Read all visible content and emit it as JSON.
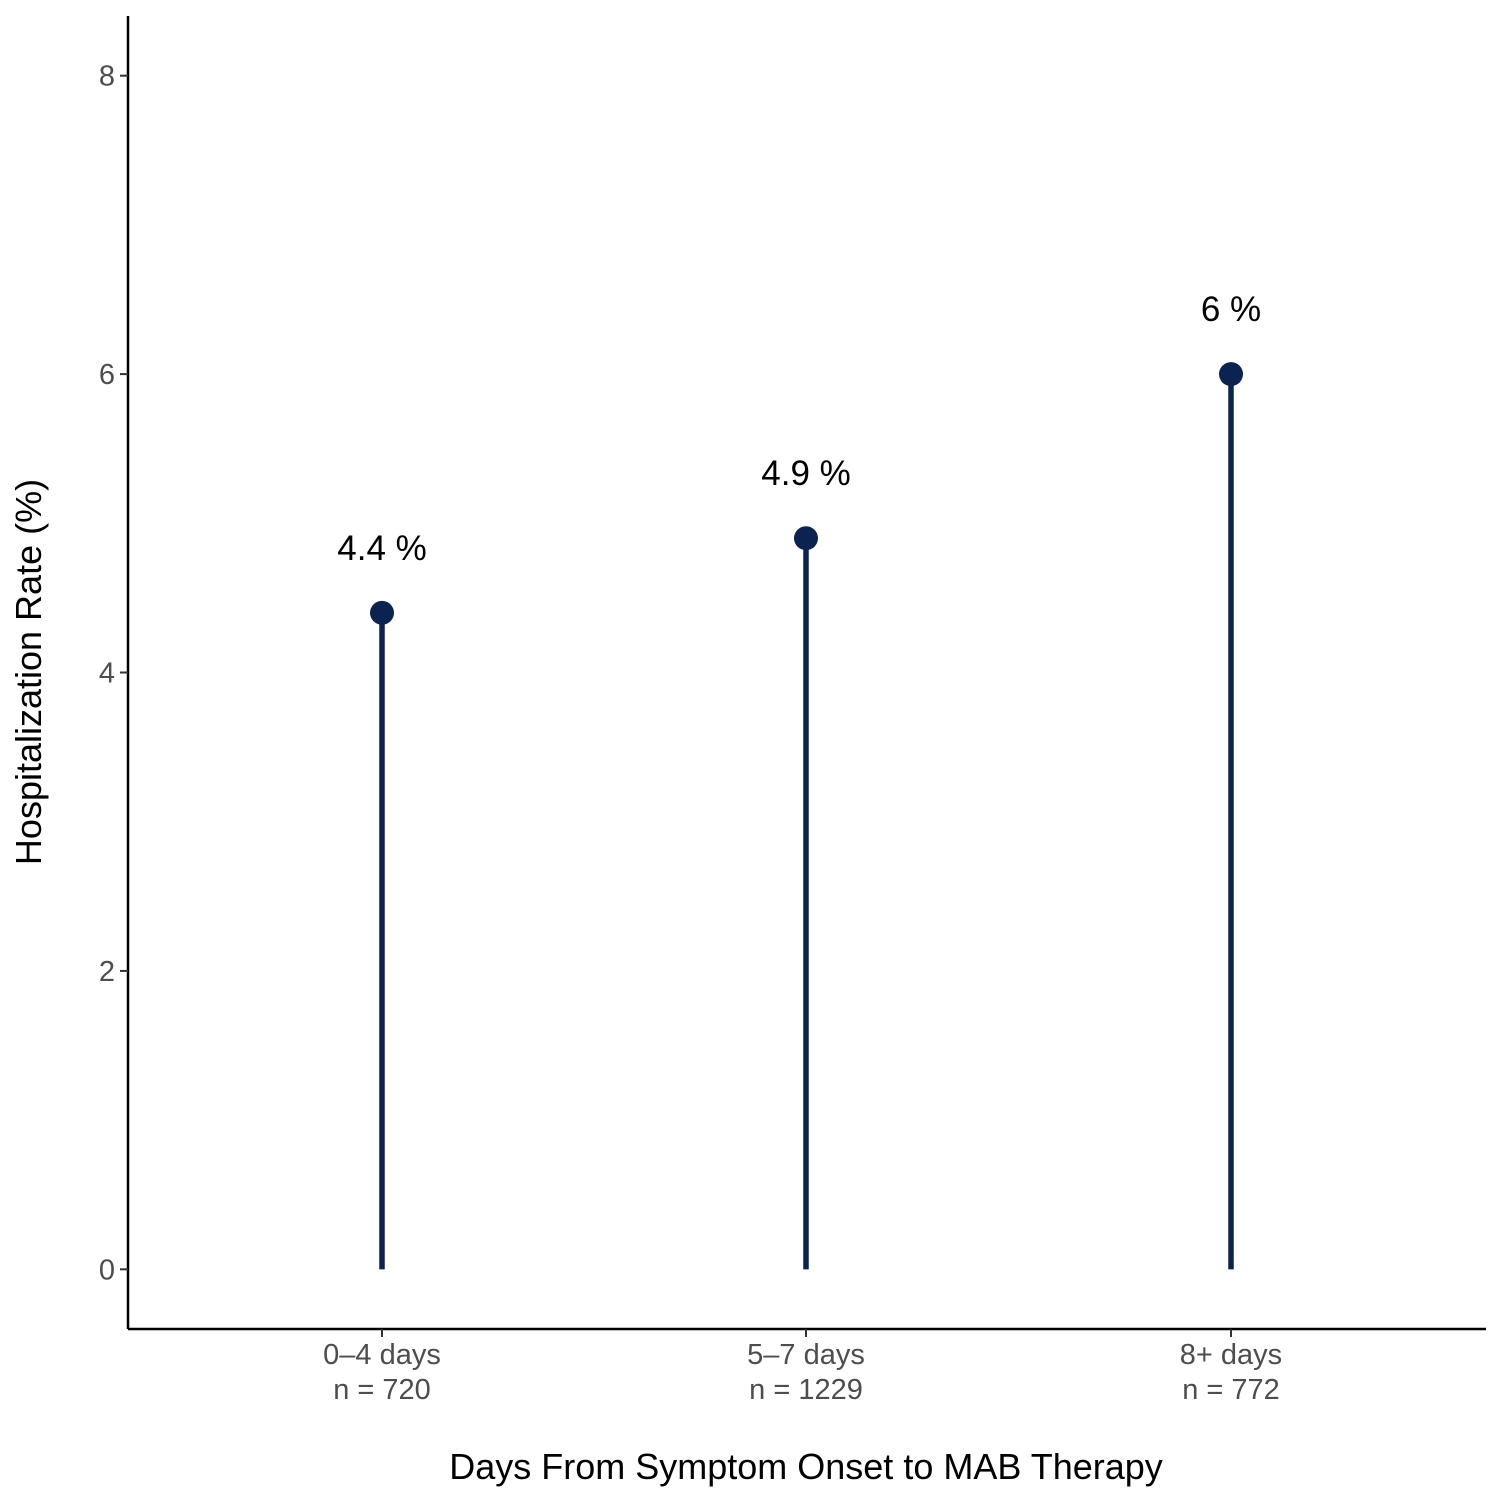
{
  "chart_data": {
    "type": "lollipop",
    "title": "",
    "xlabel": "Days From Symptom Onset to MAB Therapy",
    "ylabel": "Hospitalization Rate (%)",
    "categories": [
      {
        "label": "0–4 days",
        "sublabel": "n = 720"
      },
      {
        "label": "5–7 days",
        "sublabel": "n = 1229"
      },
      {
        "label": "8+ days",
        "sublabel": "n = 772"
      }
    ],
    "values": [
      4.4,
      4.9,
      6.0
    ],
    "data_labels": [
      "4.4 %",
      "4.9 %",
      "6 %"
    ],
    "y_ticks": [
      {
        "value": 0,
        "label": "0"
      },
      {
        "value": 2,
        "label": "2"
      },
      {
        "value": 4,
        "label": "4"
      },
      {
        "value": 6,
        "label": "6"
      },
      {
        "value": 8,
        "label": "8"
      }
    ],
    "ylim": [
      -0.4,
      8.4
    ],
    "grid": false,
    "legend": "none",
    "color": "#0b2350"
  }
}
